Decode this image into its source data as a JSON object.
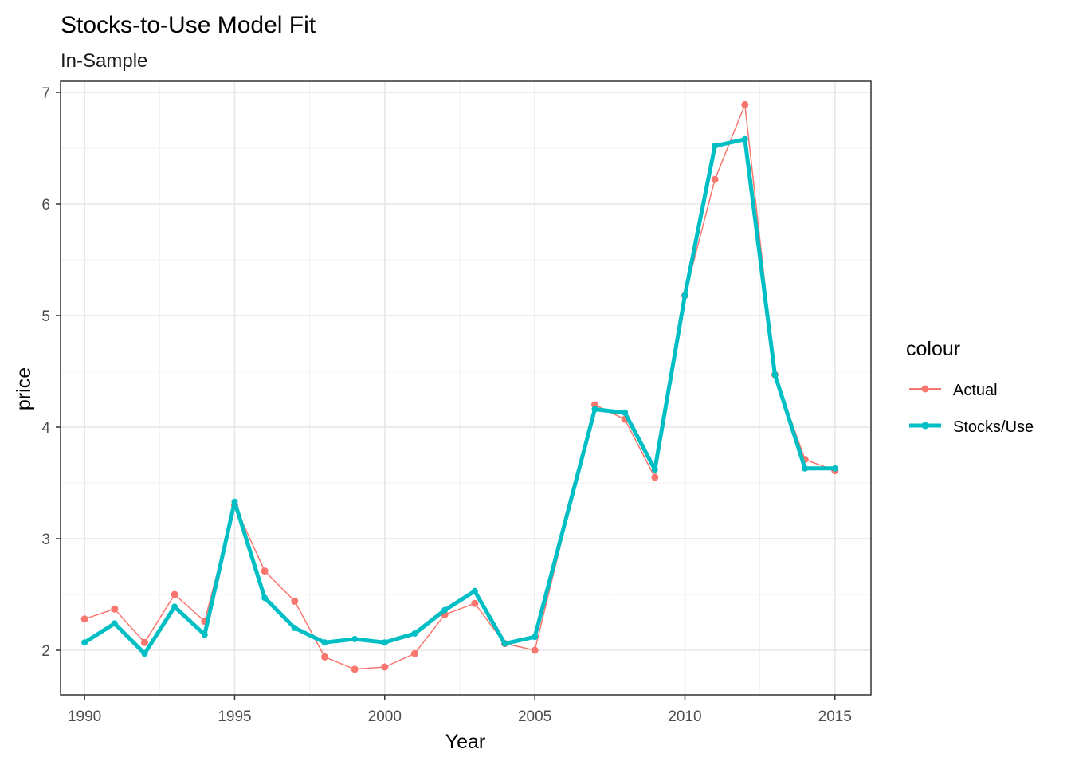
{
  "chart_data": {
    "type": "line",
    "title": "Stocks-to-Use Model Fit",
    "subtitle": "In-Sample",
    "xlabel": "Year",
    "ylabel": "price",
    "xlim": [
      1989.2,
      2016.2
    ],
    "ylim": [
      1.6,
      7.1
    ],
    "x_ticks": [
      1990,
      1995,
      2000,
      2005,
      2010,
      2015
    ],
    "x_tick_labels": [
      "1990",
      "1995",
      "2000",
      "2005",
      "2010",
      "2015"
    ],
    "y_ticks": [
      2,
      3,
      4,
      5,
      6,
      7
    ],
    "y_tick_labels": [
      "2",
      "3",
      "4",
      "5",
      "6",
      "7"
    ],
    "grid": true,
    "legend": {
      "title": "colour",
      "position": "right"
    },
    "x": [
      1990,
      1991,
      1992,
      1993,
      1994,
      1995,
      1996,
      1997,
      1998,
      1999,
      2000,
      2001,
      2002,
      2003,
      2004,
      2005,
      2006,
      2007,
      2008,
      2009,
      2010,
      2011,
      2012,
      2013,
      2014,
      2015
    ],
    "series": [
      {
        "name": "Actual",
        "color": "#F8766D",
        "values": [
          2.28,
          2.37,
          2.07,
          2.5,
          2.26,
          3.3,
          2.71,
          2.44,
          1.94,
          1.83,
          1.85,
          1.97,
          2.32,
          2.42,
          2.06,
          2.0,
          null,
          4.2,
          4.07,
          3.55,
          5.18,
          6.22,
          6.89,
          4.47,
          3.71,
          3.61
        ]
      },
      {
        "name": "Stocks/Use",
        "color": "#00BFC4",
        "values": [
          2.07,
          2.24,
          1.97,
          2.39,
          2.14,
          3.33,
          2.47,
          2.2,
          2.07,
          2.1,
          2.07,
          2.15,
          2.36,
          2.53,
          2.06,
          2.12,
          null,
          4.16,
          4.13,
          3.62,
          5.18,
          6.52,
          6.58,
          4.47,
          3.63,
          3.63
        ]
      }
    ]
  }
}
